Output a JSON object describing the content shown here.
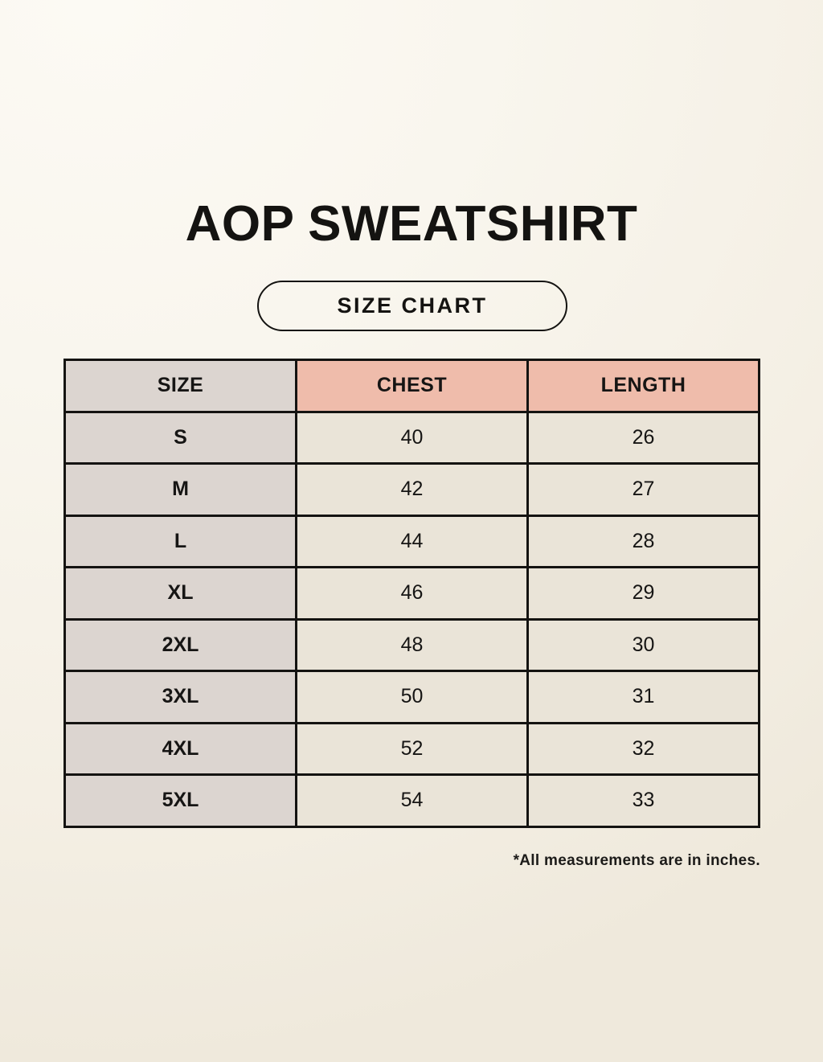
{
  "page": {
    "title": "AOP SWEATSHIRT",
    "badge_label": "SIZE CHART",
    "footnote": "*All measurements are in inches."
  },
  "chart_data": {
    "type": "table",
    "title": "AOP SWEATSHIRT — SIZE CHART",
    "columns": [
      "SIZE",
      "CHEST",
      "LENGTH"
    ],
    "units": "inches",
    "rows": [
      [
        "S",
        "40",
        "26"
      ],
      [
        "M",
        "42",
        "27"
      ],
      [
        "L",
        "44",
        "28"
      ],
      [
        "XL",
        "46",
        "29"
      ],
      [
        "2XL",
        "48",
        "30"
      ],
      [
        "3XL",
        "50",
        "31"
      ],
      [
        "4XL",
        "52",
        "32"
      ],
      [
        "5XL",
        "54",
        "33"
      ]
    ]
  },
  "colors": {
    "accent": "#efbcab",
    "graycol": "#dcd5d0",
    "cream": "#eae4d8",
    "border": "#141311"
  }
}
